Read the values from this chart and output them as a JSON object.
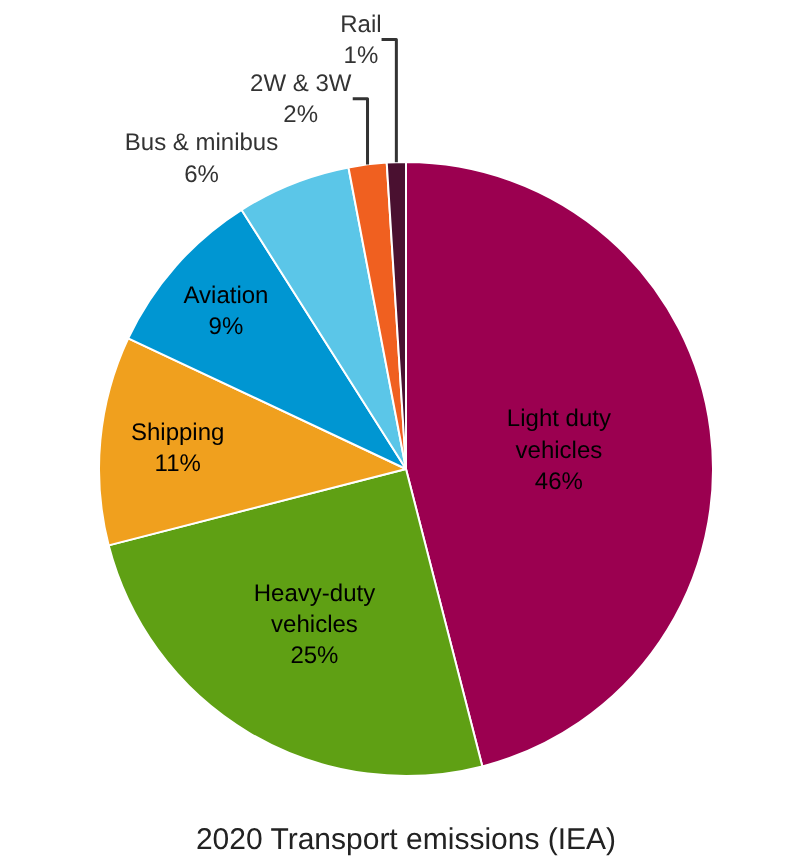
{
  "chart_data": {
    "type": "pie",
    "title": "2020 Transport emissions (IEA)",
    "categories": [
      "Light duty vehicles",
      "Heavy-duty vehicles",
      "Shipping",
      "Aviation",
      "Bus & minibus",
      "2W & 3W",
      "Rail"
    ],
    "values": [
      46,
      25,
      11,
      9,
      6,
      2,
      1
    ],
    "colors": [
      "#9b0050",
      "#5fa014",
      "#f0a01e",
      "#0096d2",
      "#5bc6e8",
      "#f06020",
      "#4a1030"
    ],
    "value_labels": [
      "46%",
      "25%",
      "11%",
      "9%",
      "6%",
      "2%",
      "1%"
    ],
    "legend": false
  }
}
